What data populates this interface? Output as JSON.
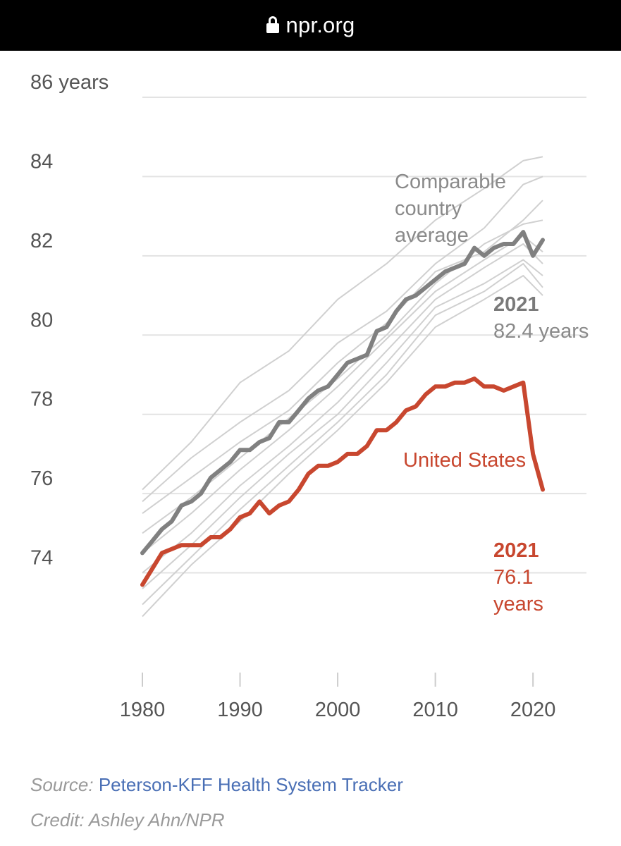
{
  "browser": {
    "url": "npr.org",
    "icon": "lock-icon"
  },
  "chart_data": {
    "type": "line",
    "y_unit_label": "86 years",
    "ylim": [
      72.8,
      86
    ],
    "y_ticks": [
      74,
      76,
      78,
      80,
      82,
      84
    ],
    "xlim": [
      1980,
      2021
    ],
    "x_ticks": [
      1980,
      1990,
      2000,
      2010,
      2020
    ],
    "grid": true,
    "colors": {
      "us": "#c8472f",
      "average": "#808080",
      "countries": "#d0d0d0"
    },
    "series": [
      {
        "name": "Comparable country average",
        "role": "average",
        "x": [
          1980,
          1981,
          1982,
          1983,
          1984,
          1985,
          1986,
          1987,
          1988,
          1989,
          1990,
          1991,
          1992,
          1993,
          1994,
          1995,
          1996,
          1997,
          1998,
          1999,
          2000,
          2001,
          2002,
          2003,
          2004,
          2005,
          2006,
          2007,
          2008,
          2009,
          2010,
          2011,
          2012,
          2013,
          2014,
          2015,
          2016,
          2017,
          2018,
          2019,
          2020,
          2021
        ],
        "values": [
          74.5,
          74.8,
          75.1,
          75.3,
          75.7,
          75.8,
          76.0,
          76.4,
          76.6,
          76.8,
          77.1,
          77.1,
          77.3,
          77.4,
          77.8,
          77.8,
          78.1,
          78.4,
          78.6,
          78.7,
          79.0,
          79.3,
          79.4,
          79.5,
          80.1,
          80.2,
          80.6,
          80.9,
          81.0,
          81.2,
          81.4,
          81.6,
          81.7,
          81.8,
          82.2,
          82.0,
          82.2,
          82.3,
          82.3,
          82.6,
          82.0,
          82.4
        ]
      },
      {
        "name": "United States",
        "role": "us",
        "x": [
          1980,
          1981,
          1982,
          1983,
          1984,
          1985,
          1986,
          1987,
          1988,
          1989,
          1990,
          1991,
          1992,
          1993,
          1994,
          1995,
          1996,
          1997,
          1998,
          1999,
          2000,
          2001,
          2002,
          2003,
          2004,
          2005,
          2006,
          2007,
          2008,
          2009,
          2010,
          2011,
          2012,
          2013,
          2014,
          2015,
          2016,
          2017,
          2018,
          2019,
          2020,
          2021
        ],
        "values": [
          73.7,
          74.1,
          74.5,
          74.6,
          74.7,
          74.7,
          74.7,
          74.9,
          74.9,
          75.1,
          75.4,
          75.5,
          75.8,
          75.5,
          75.7,
          75.8,
          76.1,
          76.5,
          76.7,
          76.7,
          76.8,
          77.0,
          77.0,
          77.2,
          77.6,
          77.6,
          77.8,
          78.1,
          78.2,
          78.5,
          78.7,
          78.7,
          78.8,
          78.8,
          78.9,
          78.7,
          78.7,
          78.6,
          78.7,
          78.8,
          77.0,
          76.1
        ]
      }
    ],
    "country_lines": [
      {
        "x": [
          1980,
          1985,
          1990,
          1995,
          2000,
          2005,
          2010,
          2015,
          2019,
          2021
        ],
        "values": [
          76.1,
          77.3,
          78.8,
          79.6,
          80.9,
          81.8,
          82.9,
          83.7,
          84.4,
          84.5
        ]
      },
      {
        "x": [
          1980,
          1985,
          1990,
          1995,
          2000,
          2005,
          2010,
          2015,
          2019,
          2021
        ],
        "values": [
          75.8,
          76.9,
          77.8,
          78.6,
          79.8,
          80.6,
          81.8,
          82.7,
          83.8,
          84.0
        ]
      },
      {
        "x": [
          1980,
          1985,
          1990,
          1995,
          2000,
          2005,
          2010,
          2015,
          2019,
          2021
        ],
        "values": [
          75.5,
          76.4,
          77.3,
          78.1,
          79.3,
          80.3,
          81.6,
          82.1,
          82.9,
          83.4
        ]
      },
      {
        "x": [
          1980,
          1985,
          1990,
          1995,
          2000,
          2005,
          2010,
          2015,
          2019,
          2021
        ],
        "values": [
          75.0,
          75.9,
          76.9,
          77.9,
          78.9,
          80.0,
          81.3,
          82.3,
          82.8,
          82.9
        ]
      },
      {
        "x": [
          1980,
          1985,
          1990,
          1995,
          2000,
          2005,
          2010,
          2015,
          2019,
          2021
        ],
        "values": [
          74.5,
          75.5,
          76.6,
          77.6,
          78.7,
          79.9,
          81.1,
          81.9,
          82.5,
          82.1
        ]
      },
      {
        "x": [
          1980,
          1985,
          1990,
          1995,
          2000,
          2005,
          2010,
          2015,
          2019,
          2021
        ],
        "values": [
          74.0,
          75.0,
          76.2,
          77.2,
          78.3,
          79.6,
          80.9,
          81.7,
          82.3,
          81.8
        ]
      },
      {
        "x": [
          1980,
          1985,
          1990,
          1995,
          2000,
          2005,
          2010,
          2015,
          2019,
          2021
        ],
        "values": [
          73.6,
          74.7,
          75.9,
          77.0,
          78.0,
          79.3,
          80.7,
          81.3,
          81.9,
          81.5
        ]
      },
      {
        "x": [
          1980,
          1985,
          1990,
          1995,
          2000,
          2005,
          2010,
          2015,
          2019,
          2021
        ],
        "values": [
          73.2,
          74.4,
          75.6,
          76.7,
          77.8,
          79.0,
          80.5,
          81.1,
          81.8,
          81.2
        ]
      },
      {
        "x": [
          1980,
          1985,
          1990,
          1995,
          2000,
          2005,
          2010,
          2015,
          2019,
          2021
        ],
        "values": [
          72.9,
          74.2,
          75.3,
          76.5,
          77.6,
          78.8,
          80.2,
          80.9,
          81.5,
          81.0
        ]
      }
    ],
    "annotations": {
      "average_label": [
        "Comparable",
        "country",
        "average"
      ],
      "average_year": "2021",
      "average_value": "82.4 years",
      "us_label": "United States",
      "us_year": "2021",
      "us_value_lines": [
        "76.1",
        "years"
      ]
    }
  },
  "footer": {
    "source_prefix": "Source: ",
    "source_link": "Peterson-KFF Health System Tracker",
    "credit": "Credit: Ashley Ahn/NPR"
  }
}
